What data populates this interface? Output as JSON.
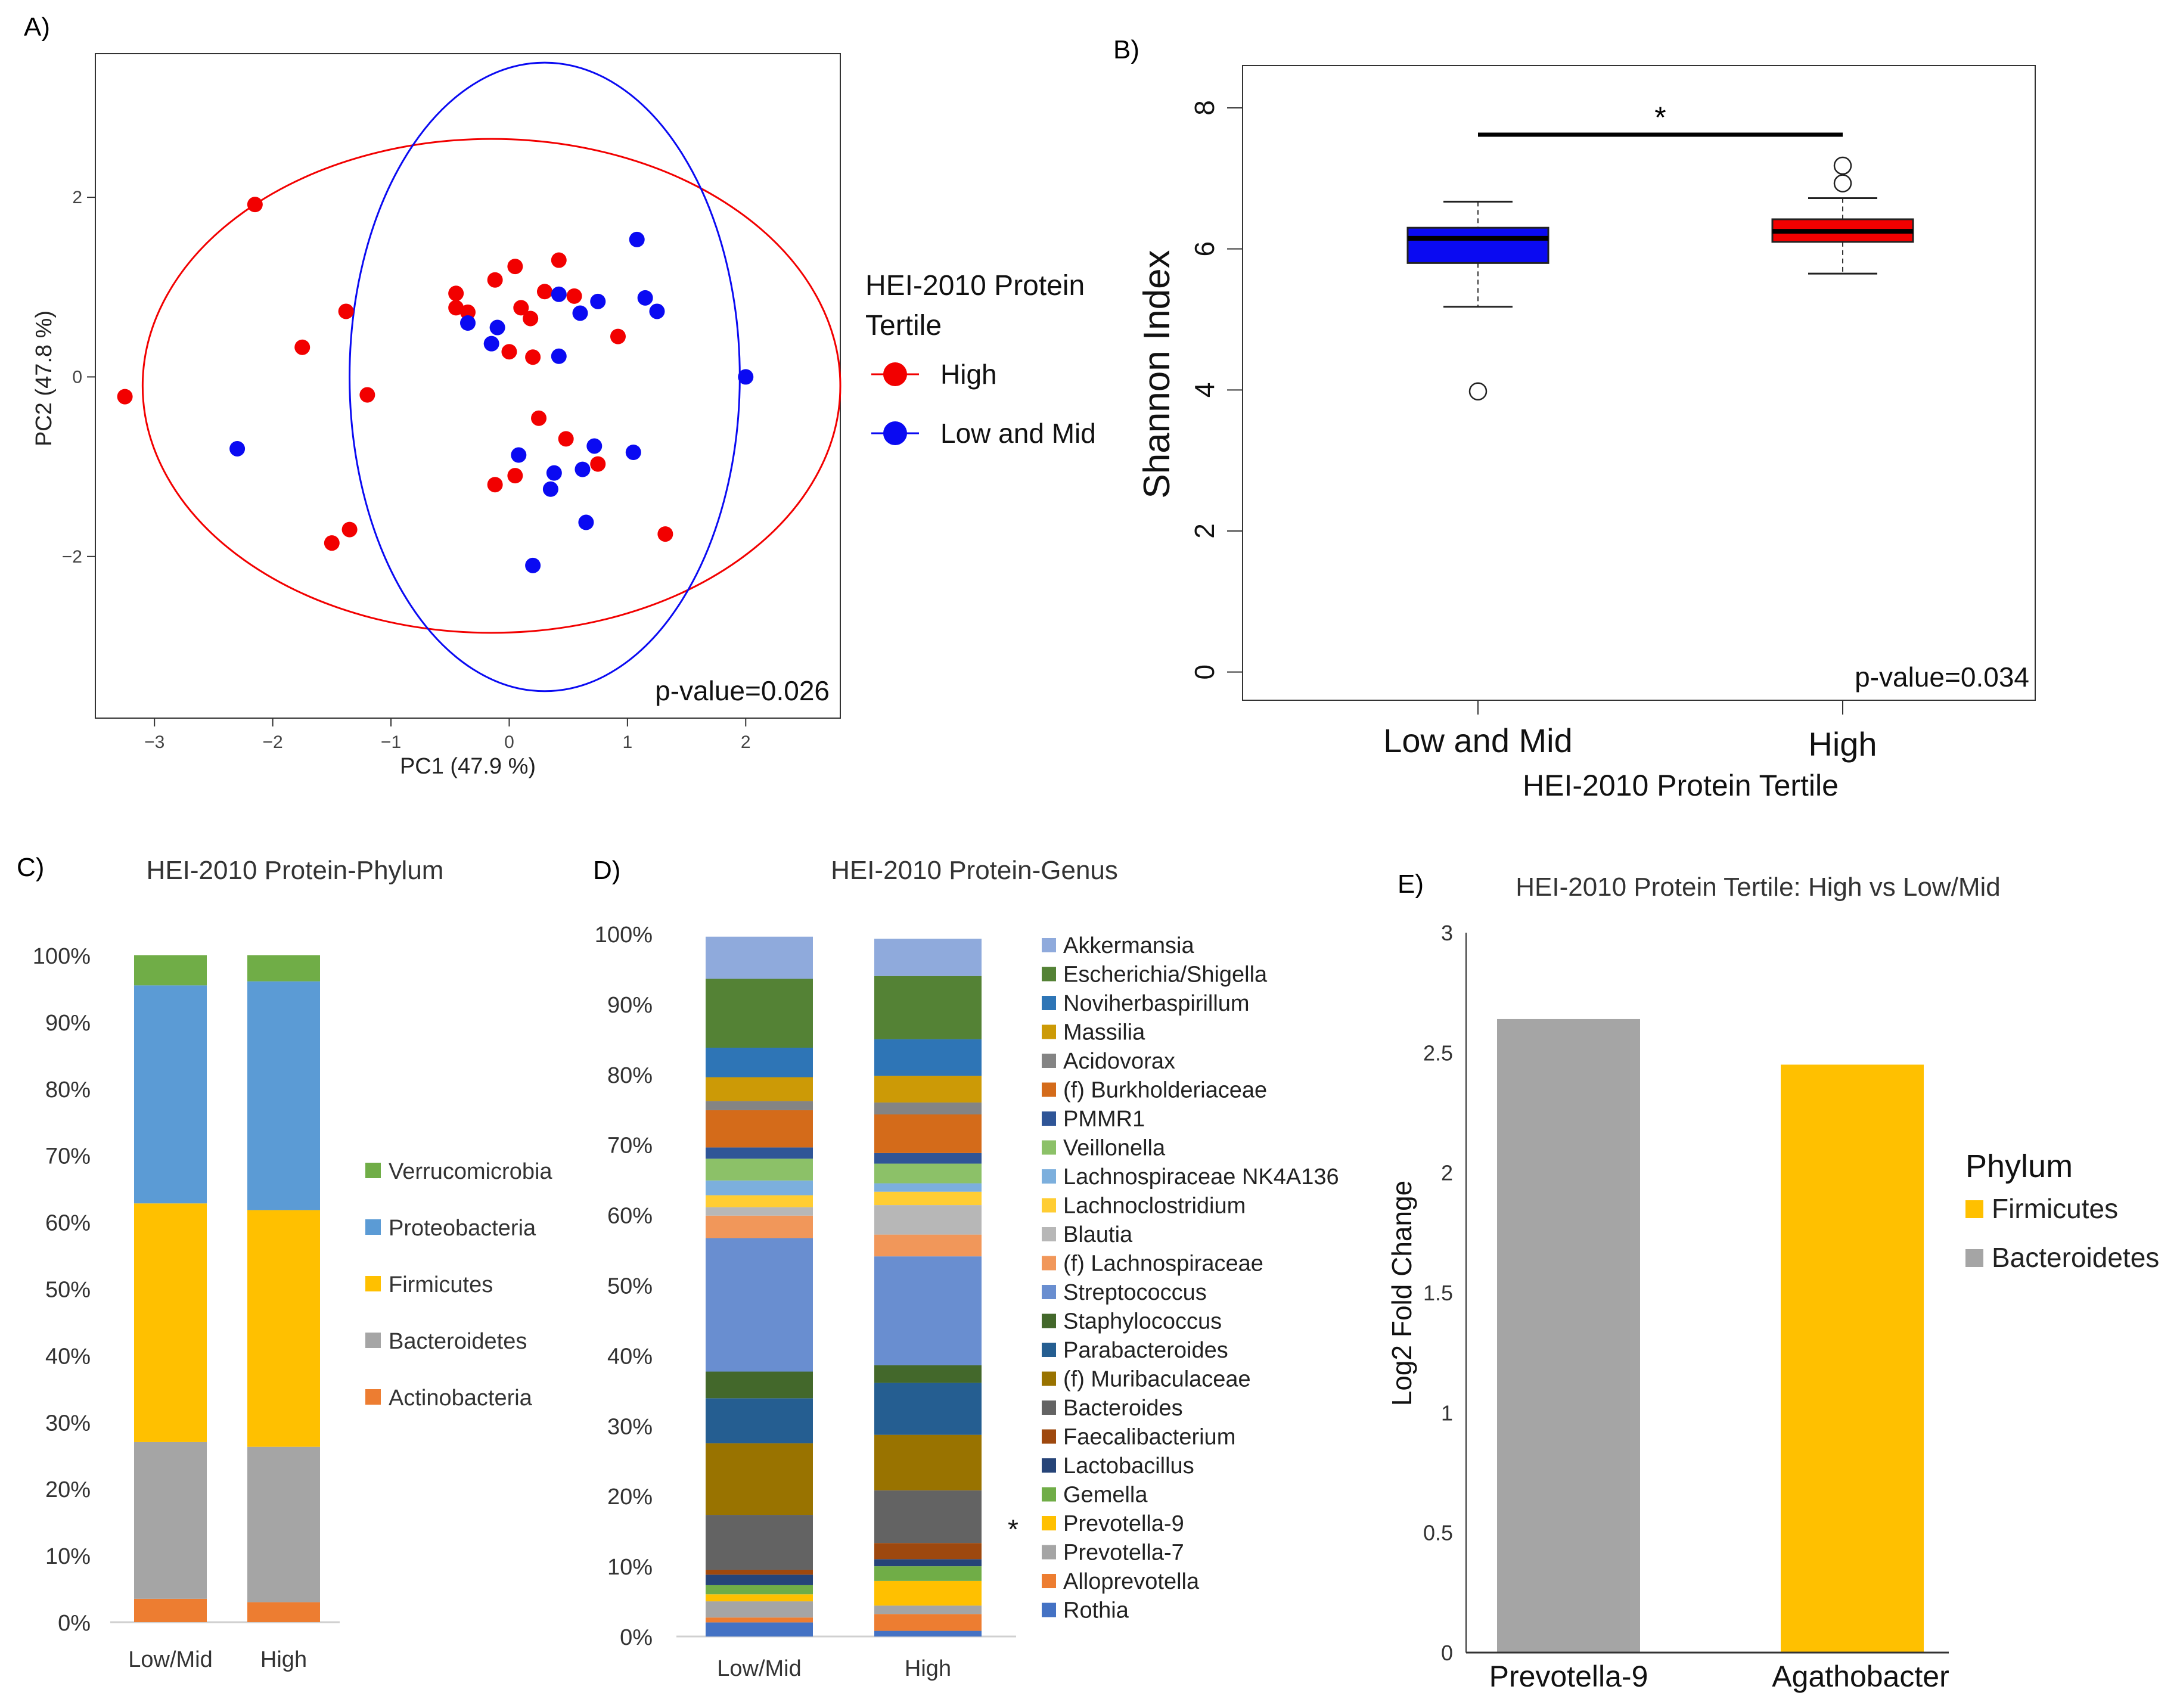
{
  "colors": {
    "high": "#f20000",
    "low_mid": "#0a0af2",
    "verrucomicrobia": "#70ad47",
    "proteobacteria": "#5b9bd5",
    "firmicutes": "#ffc000",
    "bacteroidetes": "#a5a5a5",
    "actinobacteria": "#ed7d31"
  },
  "chart_data": [
    {
      "panel_label": "A)",
      "type": "scatter",
      "title": "",
      "xlabel": "PC1 (47.9 %)",
      "ylabel": "PC2 (47.8 %)",
      "xlim": [
        -3.5,
        2.8
      ],
      "ylim": [
        -3.8,
        3.6
      ],
      "xticks": [
        -3,
        -2,
        -1,
        0,
        1,
        2
      ],
      "yticks": [
        -2,
        0,
        2
      ],
      "xtick_labels": [
        "−3",
        "−2",
        "−1",
        "0",
        "1",
        "2"
      ],
      "ytick_labels": [
        "−2",
        "0",
        "2"
      ],
      "legend_title": "HEI-2010 Protein\nTertile",
      "legend_position": "right",
      "annotation": "p-value=0.026",
      "series": [
        {
          "name": "High",
          "color": "#f20000",
          "points": [
            [
              -3.25,
              -0.22
            ],
            [
              -2.15,
              1.92
            ],
            [
              -1.75,
              0.33
            ],
            [
              -1.38,
              0.73
            ],
            [
              -1.2,
              -0.2
            ],
            [
              -1.35,
              -1.7
            ],
            [
              -1.5,
              -1.85
            ],
            [
              -0.45,
              0.77
            ],
            [
              -0.45,
              0.93
            ],
            [
              -0.35,
              0.72
            ],
            [
              -0.12,
              1.08
            ],
            [
              0.05,
              1.23
            ],
            [
              0.1,
              0.77
            ],
            [
              0.3,
              0.95
            ],
            [
              0.2,
              0.22
            ],
            [
              0.0,
              0.28
            ],
            [
              0.18,
              0.65
            ],
            [
              0.42,
              1.3
            ],
            [
              0.55,
              0.9
            ],
            [
              0.92,
              0.45
            ],
            [
              0.25,
              -0.46
            ],
            [
              0.48,
              -0.69
            ],
            [
              0.75,
              -0.97
            ],
            [
              0.05,
              -1.1
            ],
            [
              -0.12,
              -1.2
            ],
            [
              1.32,
              -1.75
            ]
          ]
        },
        {
          "name": "Low and Mid",
          "color": "#0a0af2",
          "points": [
            [
              -2.3,
              -0.8
            ],
            [
              -0.35,
              0.6
            ],
            [
              -0.15,
              0.37
            ],
            [
              -0.1,
              0.55
            ],
            [
              0.42,
              0.92
            ],
            [
              0.6,
              0.71
            ],
            [
              0.75,
              0.84
            ],
            [
              1.08,
              1.53
            ],
            [
              1.15,
              0.88
            ],
            [
              1.25,
              0.73
            ],
            [
              0.42,
              0.23
            ],
            [
              2.0,
              0.0
            ],
            [
              0.08,
              -0.87
            ],
            [
              0.38,
              -1.07
            ],
            [
              0.35,
              -1.25
            ],
            [
              0.62,
              -1.03
            ],
            [
              0.72,
              -0.77
            ],
            [
              1.05,
              -0.84
            ],
            [
              0.65,
              -1.62
            ],
            [
              0.2,
              -2.1
            ]
          ]
        }
      ],
      "ellipses": [
        {
          "group": "High",
          "center": [
            -0.15,
            -0.1
          ],
          "rx": 2.95,
          "ry": 2.75
        },
        {
          "group": "Low and Mid",
          "center": [
            0.3,
            0.0
          ],
          "rx": 1.65,
          "ry": 3.5
        }
      ]
    },
    {
      "panel_label": "B)",
      "type": "box",
      "title": "",
      "xlabel": "HEI-2010 Protein Tertile",
      "ylabel": "Shannon Index",
      "ylim": [
        -0.4,
        8.6
      ],
      "yticks": [
        0,
        2,
        4,
        6,
        8
      ],
      "ytick_labels": [
        "0",
        "2",
        "4",
        "6",
        "8"
      ],
      "categories": [
        "Low and Mid",
        "High"
      ],
      "boxes": [
        {
          "name": "Low and Mid",
          "color": "#0a0af2",
          "whisker_low": 5.18,
          "q1": 5.8,
          "median": 6.15,
          "q3": 6.3,
          "whisker_high": 6.67,
          "outliers": [
            3.98
          ]
        },
        {
          "name": "High",
          "color": "#f20000",
          "whisker_low": 5.65,
          "q1": 6.1,
          "median": 6.25,
          "q3": 6.42,
          "whisker_high": 6.72,
          "outliers": [
            6.93,
            7.18
          ]
        }
      ],
      "significance": {
        "label": "*",
        "y": 7.62
      },
      "annotation": "p-value=0.034"
    },
    {
      "panel_label": "C)",
      "type": "bar",
      "stacked": true,
      "title": "HEI-2010 Protein-Phylum",
      "categories": [
        "Low/Mid",
        "High"
      ],
      "ylim": [
        0,
        100
      ],
      "yticks": [
        0,
        10,
        20,
        30,
        40,
        50,
        60,
        70,
        80,
        90,
        100
      ],
      "ytick_labels": [
        "0%",
        "10%",
        "20%",
        "30%",
        "40%",
        "50%",
        "60%",
        "70%",
        "80%",
        "90%",
        "100%"
      ],
      "legend_order": [
        "Verrucomicrobia",
        "Proteobacteria",
        "Firmicutes",
        "Bacteroidetes",
        "Actinobacteria"
      ],
      "legend_position": "right",
      "series": [
        {
          "name": "Actinobacteria",
          "color": "#ed7d31",
          "values": [
            3.5,
            3.0
          ]
        },
        {
          "name": "Bacteroidetes",
          "color": "#a5a5a5",
          "values": [
            23.5,
            23.3
          ]
        },
        {
          "name": "Firmicutes",
          "color": "#ffc000",
          "values": [
            35.8,
            35.5
          ]
        },
        {
          "name": "Proteobacteria",
          "color": "#5b9bd5",
          "values": [
            32.7,
            34.3
          ]
        },
        {
          "name": "Verrucomicrobia",
          "color": "#70ad47",
          "values": [
            4.5,
            3.9
          ]
        }
      ]
    },
    {
      "panel_label": "D)",
      "type": "bar",
      "stacked": true,
      "title": "HEI-2010 Protein-Genus",
      "categories": [
        "Low/Mid",
        "High"
      ],
      "ylim": [
        0,
        100
      ],
      "yticks": [
        0,
        10,
        20,
        30,
        40,
        50,
        60,
        70,
        80,
        90,
        100
      ],
      "ytick_labels": [
        "0%",
        "10%",
        "20%",
        "30%",
        "40%",
        "50%",
        "60%",
        "70%",
        "80%",
        "90%",
        "100%"
      ],
      "legend_position": "right",
      "annotation": "*",
      "annotated_series": "Prevotella-9",
      "series": [
        {
          "name": "Rothia",
          "color": "#4472c4",
          "values": [
            2.0,
            0.8
          ]
        },
        {
          "name": "Alloprevotella",
          "color": "#ed7d31",
          "values": [
            0.7,
            2.4
          ]
        },
        {
          "name": "Prevotella-7",
          "color": "#a5a5a5",
          "values": [
            2.3,
            1.2
          ]
        },
        {
          "name": "Prevotella-9",
          "color": "#ffc000",
          "values": [
            1.0,
            3.5
          ]
        },
        {
          "name": "Gemella",
          "color": "#70ad47",
          "values": [
            1.3,
            2.1
          ]
        },
        {
          "name": "Lactobacillus",
          "color": "#264478",
          "values": [
            1.5,
            1.0
          ]
        },
        {
          "name": "Faecalibacterium",
          "color": "#9e480e",
          "values": [
            0.7,
            2.3
          ]
        },
        {
          "name": "Bacteroides",
          "color": "#636363",
          "values": [
            7.8,
            7.5
          ]
        },
        {
          "name": "(f) Muribaculaceae",
          "color": "#997300",
          "values": [
            10.2,
            7.9
          ]
        },
        {
          "name": "Parabacteroides",
          "color": "#255e91",
          "values": [
            6.4,
            7.4
          ]
        },
        {
          "name": "Staphylococcus",
          "color": "#43682b",
          "values": [
            3.8,
            2.5
          ]
        },
        {
          "name": "Streptococcus",
          "color": "#698ed0",
          "values": [
            19.0,
            15.5
          ]
        },
        {
          "name": "(f) Lachnospiraceae",
          "color": "#f1975a",
          "values": [
            3.2,
            3.1
          ]
        },
        {
          "name": "Blautia",
          "color": "#b7b7b7",
          "values": [
            1.2,
            4.2
          ]
        },
        {
          "name": "Lachnoclostridium",
          "color": "#ffcd33",
          "values": [
            1.7,
            1.9
          ]
        },
        {
          "name": "Lachnospiraceae NK4A136",
          "color": "#7cafdd",
          "values": [
            2.1,
            1.2
          ]
        },
        {
          "name": "Veillonella",
          "color": "#8cc168",
          "values": [
            3.1,
            2.8
          ]
        },
        {
          "name": "PMMR1",
          "color": "#2f5597",
          "values": [
            1.6,
            1.5
          ]
        },
        {
          "name": "(f) Burkholderiaceae",
          "color": "#d46b1a",
          "values": [
            5.3,
            5.5
          ]
        },
        {
          "name": "Acidovorax",
          "color": "#848484",
          "values": [
            1.3,
            1.7
          ]
        },
        {
          "name": "Massilia",
          "color": "#cc9a06",
          "values": [
            3.4,
            3.8
          ]
        },
        {
          "name": "Noviherbaspirillum",
          "color": "#2e75b6",
          "values": [
            4.2,
            5.2
          ]
        },
        {
          "name": "Escherichia/Shigella",
          "color": "#548235",
          "values": [
            9.8,
            9.0
          ]
        },
        {
          "name": "Akkermansia",
          "color": "#8faadc",
          "values": [
            6.0,
            5.3
          ]
        }
      ]
    },
    {
      "panel_label": "E)",
      "type": "bar",
      "title": "HEI-2010 Protein Tertile: High vs Low/Mid",
      "xlabel": "",
      "ylabel": "Log2 Fold Change",
      "ylim": [
        0,
        3
      ],
      "yticks": [
        0,
        0.5,
        1,
        1.5,
        2,
        2.5,
        3
      ],
      "ytick_labels": [
        "0",
        "0.5",
        "1",
        "1.5",
        "2",
        "2.5",
        "3"
      ],
      "categories": [
        "Prevotella-9",
        "Agathobacter"
      ],
      "values": [
        2.64,
        2.45
      ],
      "bar_colors": [
        "#a5a5a5",
        "#ffc000"
      ],
      "legend_title": "Phylum",
      "legend_position": "right",
      "legend": [
        {
          "name": "Firmicutes",
          "color": "#ffc000"
        },
        {
          "name": "Bacteroidetes",
          "color": "#a5a5a5"
        }
      ]
    }
  ]
}
